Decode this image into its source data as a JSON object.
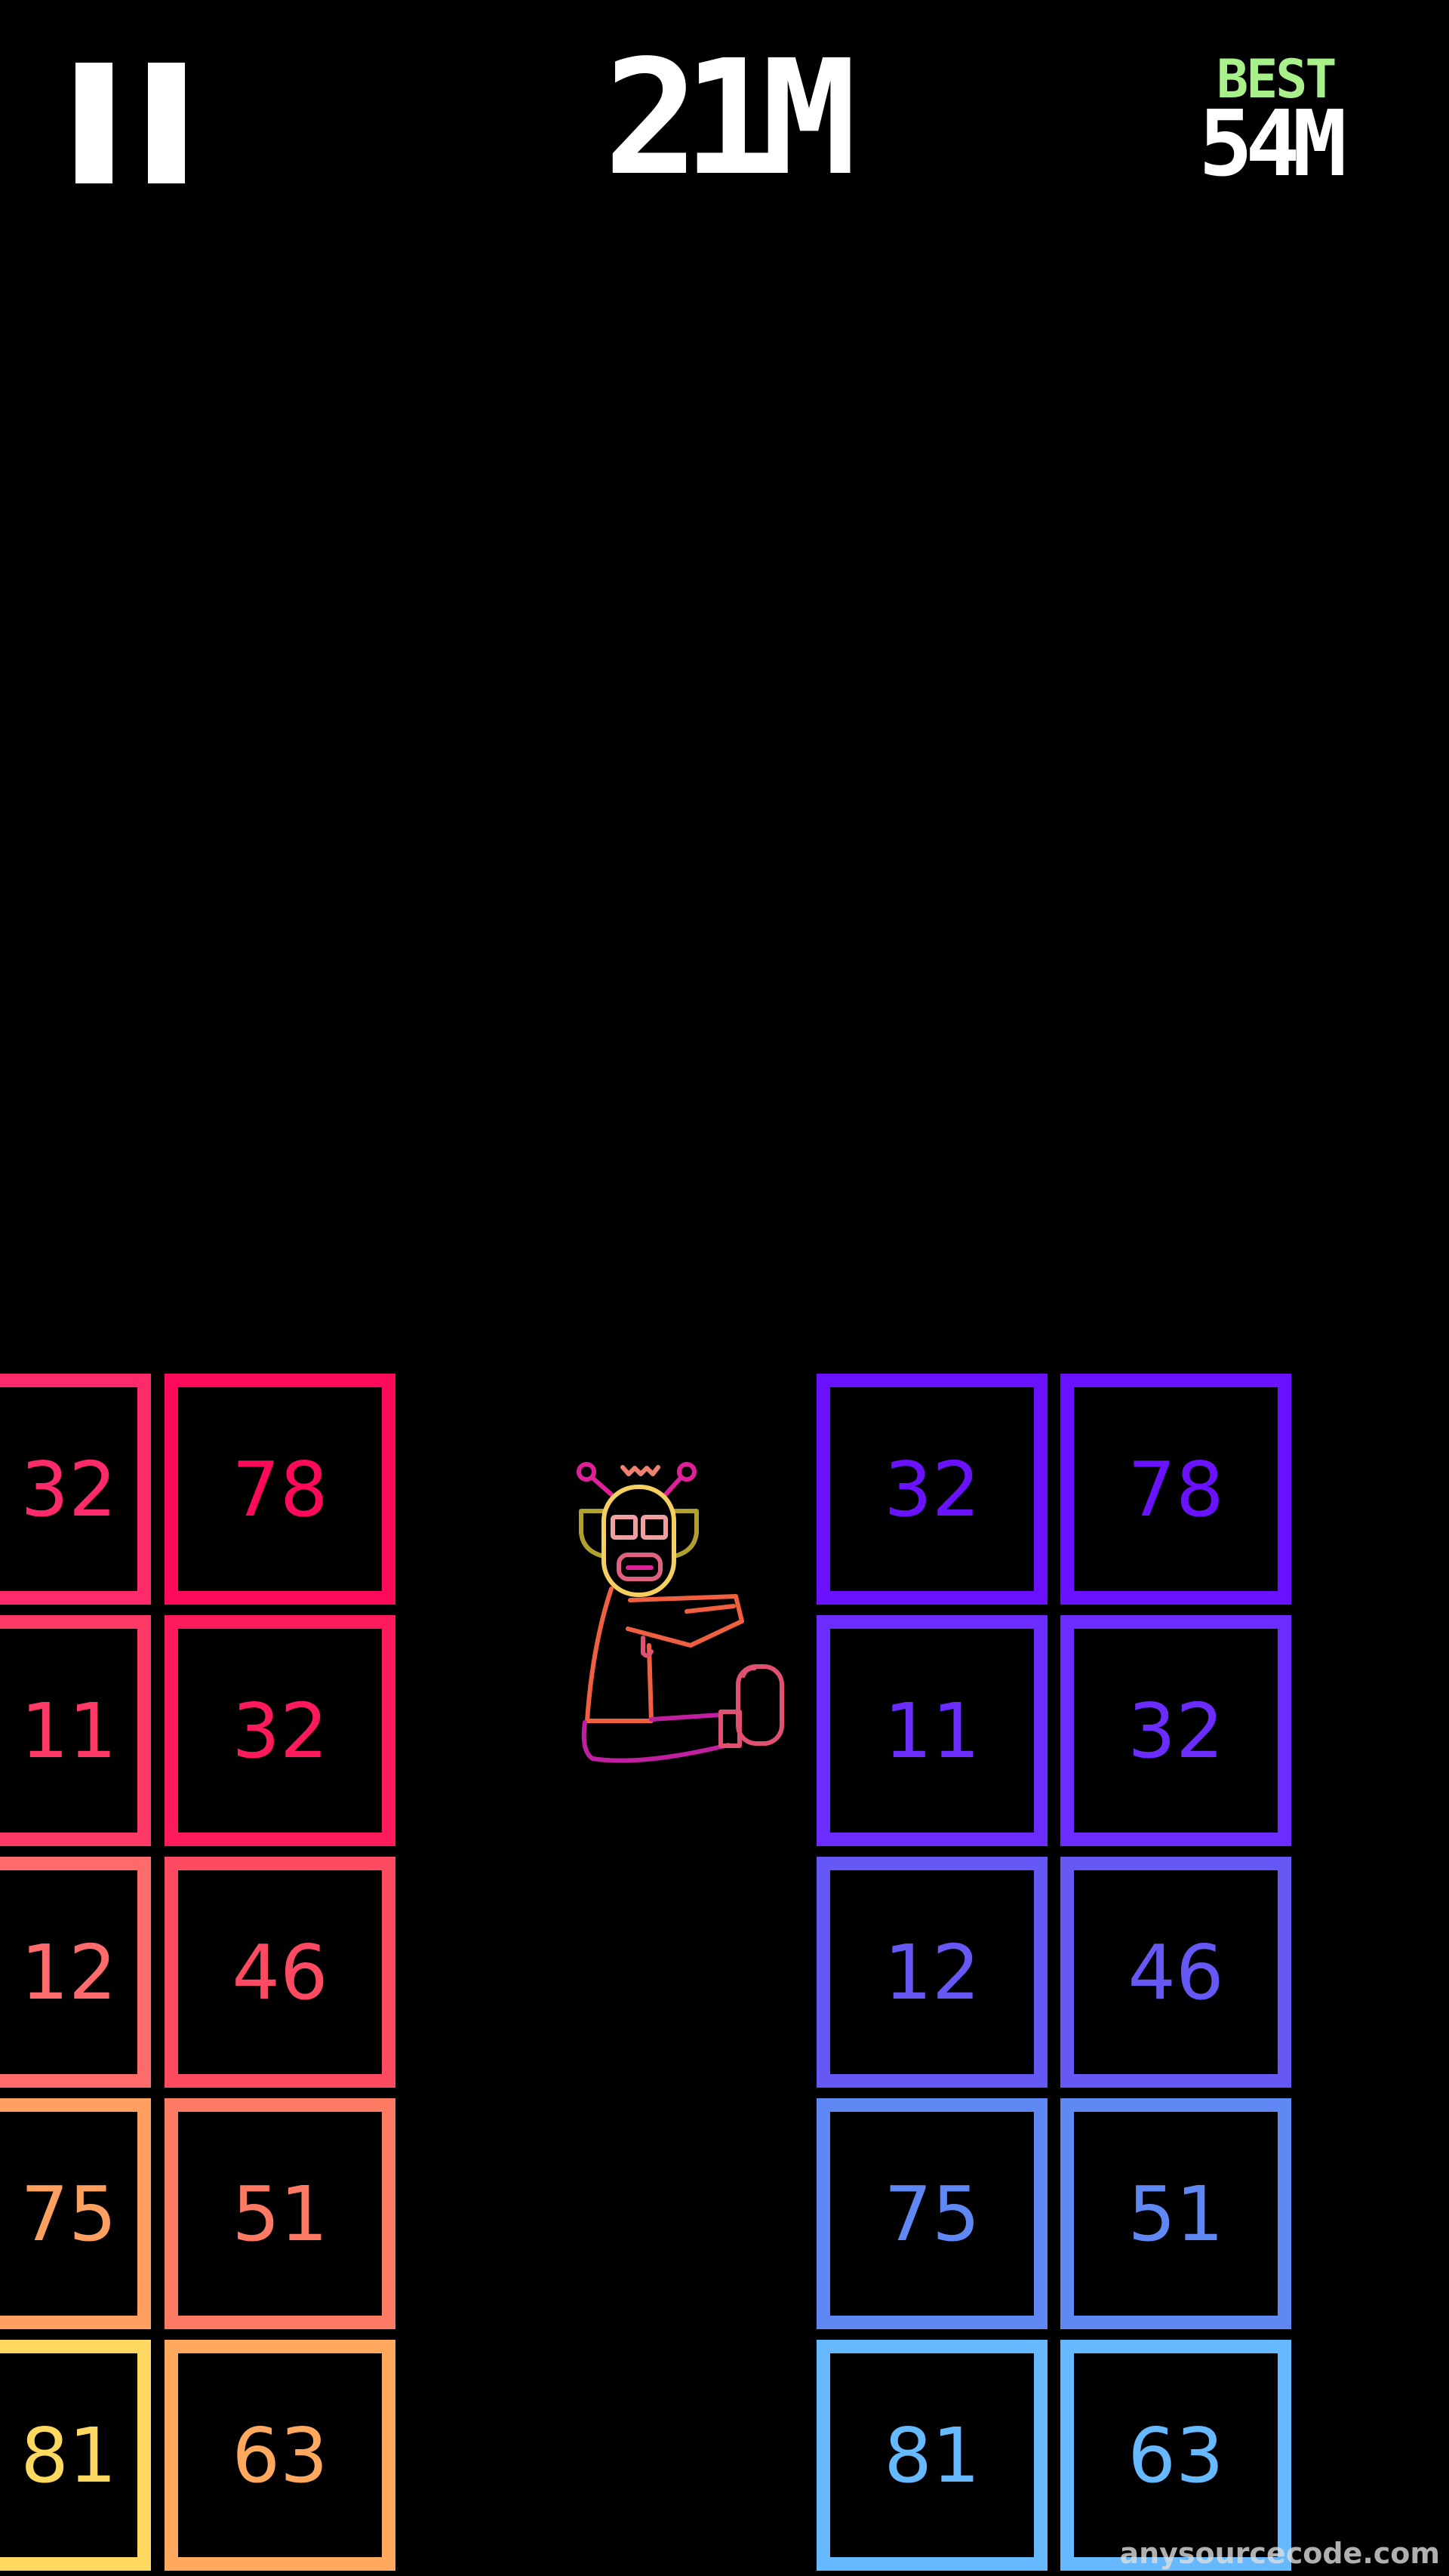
{
  "hud": {
    "pause_icon": "pause-icon",
    "distance": "21M",
    "best_label": "BEST",
    "best_value": "54M",
    "best_label_color": "#a8f08a"
  },
  "left_stack": {
    "columns": [
      {
        "values": [
          "32",
          "11",
          "12",
          "75",
          "81"
        ],
        "colors": [
          "#ff2a6a",
          "#ff3a66",
          "#ff6a6a",
          "#ffa060",
          "#ffd860"
        ]
      },
      {
        "values": [
          "78",
          "32",
          "46",
          "51",
          "63"
        ],
        "colors": [
          "#ff0a5a",
          "#ff1a5c",
          "#ff4a62",
          "#ff7a62",
          "#ffa85e"
        ]
      }
    ]
  },
  "right_stack": {
    "columns": [
      {
        "values": [
          "32",
          "11",
          "12",
          "75",
          "81"
        ],
        "colors": [
          "#6a12ff",
          "#6a2cff",
          "#6658f5",
          "#6088f5",
          "#66b8ff"
        ]
      },
      {
        "values": [
          "78",
          "32",
          "46",
          "51",
          "63"
        ],
        "colors": [
          "#6a12ff",
          "#6a2cff",
          "#6658f5",
          "#6088f5",
          "#66b8ff"
        ]
      }
    ]
  },
  "character": {
    "icon": "robot-character-icon"
  },
  "watermark": "anysourcecode.com"
}
